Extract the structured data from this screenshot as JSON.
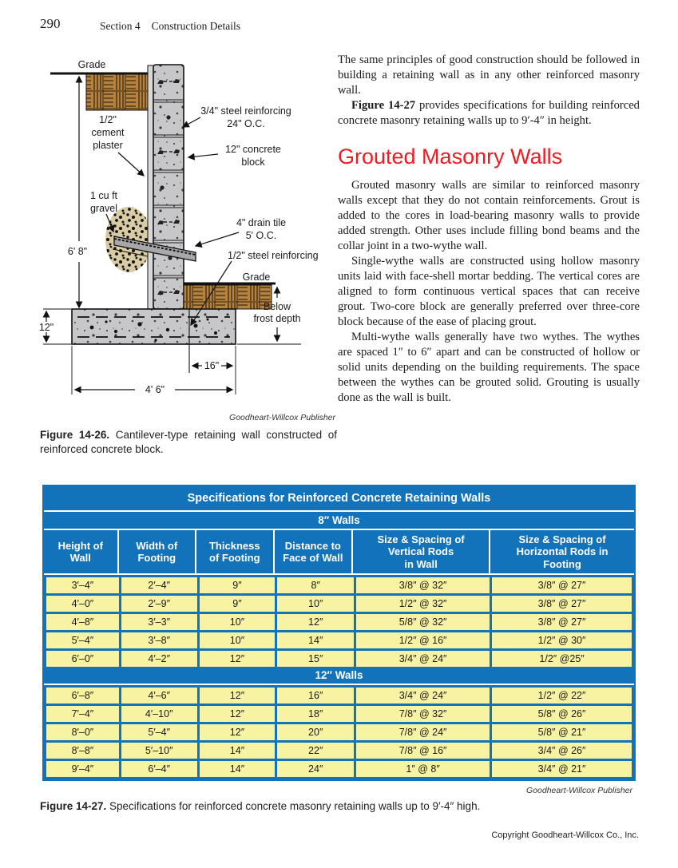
{
  "colors": {
    "table_blue": "#1272ba",
    "cell_yellow": "#f7f3a3",
    "heading_red": "#ec1c24",
    "soil_brown": "#b5823f",
    "concrete_gray": "#c7c7c9",
    "gravel_tan": "#d9cba4"
  },
  "header": {
    "page_number": "290",
    "section": "Section 4",
    "title": "Construction Details"
  },
  "figure26": {
    "labels": {
      "grade_top": "Grade",
      "plaster_1": "1/2\"",
      "plaster_2": "cement",
      "plaster_3": "plaster",
      "rebar34_1": "3/4\" steel reinforcing",
      "rebar34_2": "24\" O.C.",
      "block12_1": "12\" concrete",
      "block12_2": "block",
      "gravel_1": "1 cu ft",
      "gravel_2": "gravel",
      "drain_1": "4\" drain tile",
      "drain_2": "5' O.C.",
      "rebar12": "1/2\" steel reinforcing",
      "grade_right": "Grade",
      "frost_1": "Below",
      "frost_2": "frost depth",
      "dim_height": "6' 8\"",
      "dim_footing_thickness": "12\"",
      "dim_toe": "16\"",
      "dim_footing_width": "4' 6\""
    },
    "credit": "Goodheart-Willcox Publisher",
    "caption_label": "Figure 14-26.",
    "caption_text": " Cantilever-type retaining wall constructed of reinforced concrete block."
  },
  "column": {
    "p1": "The same principles of good construction should be followed in building a retaining wall as in any other reinforced masonry wall.",
    "p2_bold": "Figure 14-27",
    "p2_rest": " provides specifications for building reinforced concrete masonry retaining walls up to 9′-4″ in height.",
    "heading": "Grouted Masonry Walls",
    "p3": "Grouted masonry walls are similar to reinforced masonry walls except that they do not contain reinforcements. Grout is added to the cores in load-bearing masonry walls to provide added strength. Other uses include filling bond beams and the collar joint in a two-wythe wall.",
    "p4": "Single-wythe walls are constructed using hollow masonry units laid with face-shell mortar bedding. The vertical cores are aligned to form continuous vertical spaces that can receive grout. Two-core block are generally preferred over three-core block because of the ease of placing grout.",
    "p5": "Multi-wythe walls generally have two wythes. The wythes are spaced 1″ to 6″ apart and can be constructed of hollow or solid units depending on the building requirements. The space between the wythes can be grouted solid. Grouting is usually done as the wall is built."
  },
  "table": {
    "title": "Specifications for Reinforced Concrete Retaining Walls",
    "columns": [
      "Height of\nWall",
      "Width of\nFooting",
      "Thickness\nof Footing",
      "Distance to\nFace of Wall",
      "Size & Spacing of\nVertical Rods\nin Wall",
      "Size & Spacing of\nHorizontal Rods in\nFooting"
    ],
    "sections": [
      {
        "label": "8″ Walls",
        "rows": [
          [
            "3′–4″",
            "2′–4″",
            "9″",
            "8″",
            "3/8″ @ 32″",
            "3/8″ @ 27″"
          ],
          [
            "4′–0″",
            "2′–9″",
            "9″",
            "10″",
            "1/2″ @ 32″",
            "3/8″ @ 27″"
          ],
          [
            "4′–8″",
            "3′–3″",
            "10″",
            "12″",
            "5/8″ @ 32″",
            "3/8″ @ 27″"
          ],
          [
            "5′–4″",
            "3′–8″",
            "10″",
            "14″",
            "1/2″ @ 16″",
            "1/2″ @ 30″"
          ],
          [
            "6′–0″",
            "4′–2″",
            "12″",
            "15″",
            "3/4″ @ 24″",
            "1/2″ @25″"
          ]
        ]
      },
      {
        "label": "12″ Walls",
        "rows": [
          [
            "6′–8″",
            "4′–6″",
            "12″",
            "16″",
            "3/4″ @ 24″",
            "1/2″ @ 22″"
          ],
          [
            "7′–4″",
            "4′–10″",
            "12″",
            "18″",
            "7/8″ @ 32″",
            "5/8″ @ 26″"
          ],
          [
            "8′–0″",
            "5′–4″",
            "12″",
            "20″",
            "7/8″ @ 24″",
            "5/8″ @ 21″"
          ],
          [
            "8′–8″",
            "5′–10″",
            "14″",
            "22″",
            "7/8″ @ 16″",
            "3/4″ @ 26″"
          ],
          [
            "9′–4″",
            "6′–4″",
            "14″",
            "24″",
            "1″ @ 8″",
            "3/4″ @ 21″"
          ]
        ]
      }
    ],
    "credit": "Goodheart-Willcox Publisher",
    "caption_label": "Figure 14-27.",
    "caption_text": " Specifications for reinforced concrete masonry retaining walls up to 9′-4″ high."
  },
  "footer": {
    "copyright": "Copyright Goodheart-Willcox Co., Inc."
  }
}
